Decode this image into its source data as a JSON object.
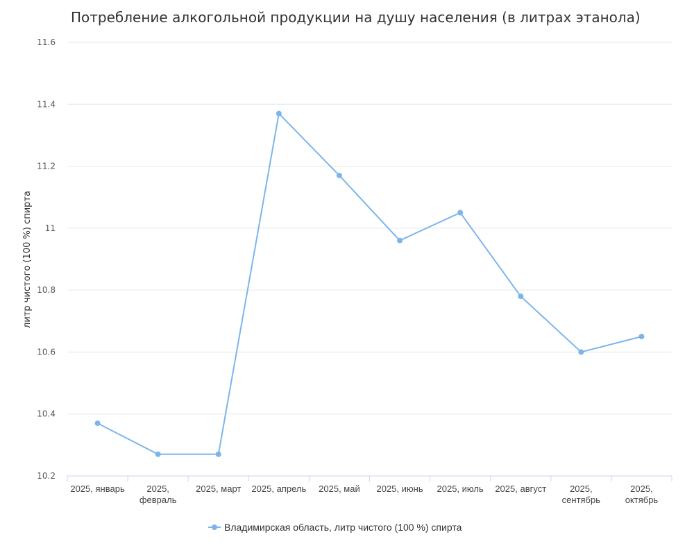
{
  "chart_data": {
    "type": "line",
    "title": "Потребление алкогольной продукции на душу населения (в литрах этанола)",
    "xlabel": "",
    "ylabel": "литр чистого (100 %) спирта",
    "categories": [
      "2025, январь",
      "2025, февраль",
      "2025, март",
      "2025, апрель",
      "2025, май",
      "2025, июнь",
      "2025, июль",
      "2025, август",
      "2025, сентябрь",
      "2025, октябрь"
    ],
    "category_lines": [
      [
        "2025, январь"
      ],
      [
        "2025,",
        "февраль"
      ],
      [
        "2025, март"
      ],
      [
        "2025, апрель"
      ],
      [
        "2025, май"
      ],
      [
        "2025, июнь"
      ],
      [
        "2025, июль"
      ],
      [
        "2025, август"
      ],
      [
        "2025,",
        "сентябрь"
      ],
      [
        "2025,",
        "октябрь"
      ]
    ],
    "series": [
      {
        "name": "Владимирская область, литр чистого (100 %) спирта",
        "values": [
          10.37,
          10.27,
          10.27,
          11.37,
          11.17,
          10.96,
          11.05,
          10.78,
          10.6,
          10.65
        ],
        "color": "#7cb5ec"
      }
    ],
    "ylim": [
      10.2,
      11.6
    ],
    "yticks": [
      10.2,
      10.4,
      10.6,
      10.8,
      11,
      11.2,
      11.4,
      11.6
    ],
    "ytick_labels": [
      "10.2",
      "10.4",
      "10.6",
      "10.8",
      "11",
      "11.2",
      "11.4",
      "11.6"
    ],
    "grid": true,
    "legend_position": "bottom-center",
    "colors": {
      "grid": "#e6e6e6",
      "axis": "#ccd6eb",
      "line": "#7cb5ec"
    }
  }
}
